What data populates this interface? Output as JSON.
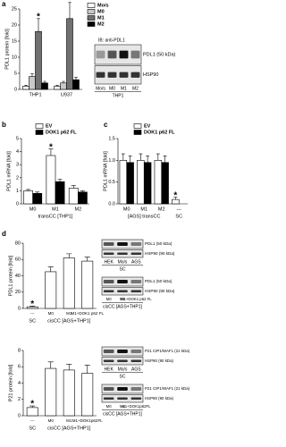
{
  "panel_labels": [
    "a",
    "b",
    "c",
    "d"
  ],
  "chart_data": [
    {
      "type": "bar",
      "y_label": "PDL1 protein [fold]",
      "categories": [
        "THP1",
        "U937"
      ],
      "series": [
        {
          "name": "Mo/s",
          "color": "#ffffff",
          "values": [
            1,
            1
          ],
          "errors": [
            0.3,
            0.3
          ]
        },
        {
          "name": "M0",
          "color": "#c8c8c8",
          "values": [
            4,
            2
          ],
          "errors": [
            0.8,
            0.5
          ]
        },
        {
          "name": "M1",
          "color": "#707070",
          "values": [
            18,
            22
          ],
          "errors": [
            4,
            5
          ]
        },
        {
          "name": "M2",
          "color": "#000000",
          "values": [
            2,
            3
          ],
          "errors": [
            0.5,
            0.8
          ]
        }
      ],
      "ylim": [
        0,
        25
      ],
      "yticks": [
        0,
        5,
        10,
        15,
        20,
        25
      ],
      "legend": true,
      "annotations": [
        {
          "text": "*",
          "category": "THP1",
          "series": "M1"
        },
        {
          "text": "*",
          "category": "U937",
          "series": "M1"
        }
      ]
    },
    {
      "type": "bar",
      "y_label": "PDL1 mRNA [fold]",
      "x_label": "transCC [THP1]",
      "categories": [
        "M0",
        "M1",
        "M2"
      ],
      "series": [
        {
          "name": "EV",
          "color": "#ffffff",
          "values": [
            1.0,
            3.7,
            1.2
          ],
          "errors": [
            0.1,
            0.5,
            0.2
          ]
        },
        {
          "name": "DOK1 p62 FL",
          "color": "#000000",
          "values": [
            0.8,
            1.7,
            0.9
          ],
          "errors": [
            0.1,
            0.2,
            0.1
          ]
        }
      ],
      "ylim": [
        0,
        5
      ],
      "yticks": [
        0,
        1,
        2,
        3,
        4,
        5
      ],
      "legend": true,
      "annotations": [
        {
          "text": "*",
          "category": "M1",
          "series": "EV"
        }
      ]
    },
    {
      "type": "bar",
      "y_label": "PDL1 mRNA [fold]",
      "categories": [
        "M0",
        "M1",
        "M2",
        "---"
      ],
      "x_groups": [
        {
          "label": "[AGS] transCC",
          "categories": [
            "M0",
            "M1",
            "M2"
          ]
        },
        {
          "label": "SC",
          "categories": [
            "---"
          ]
        }
      ],
      "series": [
        {
          "name": "EV",
          "color": "#ffffff",
          "values": [
            1.0,
            1.0,
            1.0,
            0.1
          ],
          "errors": [
            0.15,
            0.15,
            0.15,
            0.05
          ]
        },
        {
          "name": "DOK1 p62 FL",
          "color": "#000000",
          "values": [
            0.95,
            0.95,
            0.95,
            null
          ],
          "errors": [
            0.15,
            0.15,
            0.15,
            null
          ]
        }
      ],
      "ylim": [
        0,
        1.5
      ],
      "yticks": [
        {
          "value": 0,
          "label": "0.0"
        },
        0.5,
        {
          "value": 1,
          "label": "1.0"
        },
        1.5
      ],
      "legend": true,
      "annotations": [
        {
          "text": "*",
          "category": "---",
          "series": "EV"
        }
      ]
    },
    {
      "type": "bar",
      "y_label": "PDL1 protein [fold]",
      "categories": [
        "---",
        "M0",
        "M1",
        "M1+DOK1 p62 FL"
      ],
      "x_groups": [
        {
          "label": "SC",
          "categories": [
            "---"
          ]
        },
        {
          "label": "cisCC [AGS+THP1]",
          "categories": [
            "M0",
            "M1",
            "M1+DOK1 p62 FL"
          ]
        }
      ],
      "series": [
        {
          "color": "#ffffff",
          "values": [
            2,
            45,
            62,
            58
          ],
          "errors": [
            1,
            6,
            5,
            5
          ]
        }
      ],
      "ylim": [
        0,
        80
      ],
      "yticks": [
        0,
        20,
        40,
        60,
        80
      ],
      "legend": false,
      "annotations": [
        {
          "text": "*",
          "category": "---"
        }
      ]
    },
    {
      "type": "bar",
      "y_label": "P21 protein [fold]",
      "categories": [
        "---",
        "M0",
        "M1",
        "M1+DOK1p62FL"
      ],
      "x_groups": [
        {
          "label": "SC",
          "categories": [
            "---"
          ]
        },
        {
          "label": "cisCC [AGS+THP1]",
          "categories": [
            "M0",
            "M1",
            "M1+DOK1p62FL"
          ]
        }
      ],
      "series": [
        {
          "color": "#ffffff",
          "values": [
            1,
            5.8,
            5.6,
            5.2
          ],
          "errors": [
            0.2,
            0.8,
            0.7,
            1
          ]
        }
      ],
      "ylim": [
        0,
        8
      ],
      "yticks": [
        0,
        2,
        4,
        6,
        8
      ],
      "legend": false,
      "annotations": [
        {
          "text": "*",
          "category": "---"
        }
      ]
    }
  ],
  "blots": [
    {
      "title": "IB: anti-PDL1",
      "bands": [
        "PDL1 (50 kDa)",
        "HSP90"
      ],
      "lanes": [
        "Mo/s",
        "M0",
        "M1",
        "M2"
      ],
      "group": "THP1"
    },
    {
      "bands": [
        "PDL1 (50 kDa)",
        "HSP90 (90 kDa)"
      ],
      "lanes": [
        "HEK",
        "Mo/s",
        "AGS"
      ],
      "group": "SC"
    },
    {
      "bands": [
        "PDL1 (50 kDa)",
        "HSP90 (90 kDa)"
      ],
      "lanes": [
        "M0",
        "M1",
        "M1+DOK1 p62 FL"
      ],
      "group": "cisCC [AGS+THP1]"
    },
    {
      "bands": [
        "P21 CIP1/WAF1 (21 kDa)",
        "HSP90 (90 kDa)"
      ],
      "lanes": [
        "HEK",
        "Mo/s",
        "AGS"
      ],
      "group": "SC"
    },
    {
      "bands": [
        "P21 CIP1/WAF1 (21 kDa)",
        "HSP90 (90 kDa)"
      ],
      "lanes": [
        "M0",
        "M1",
        "M1+DOK1p62FL"
      ],
      "group": "cisCC [AGS+THP1]"
    }
  ]
}
